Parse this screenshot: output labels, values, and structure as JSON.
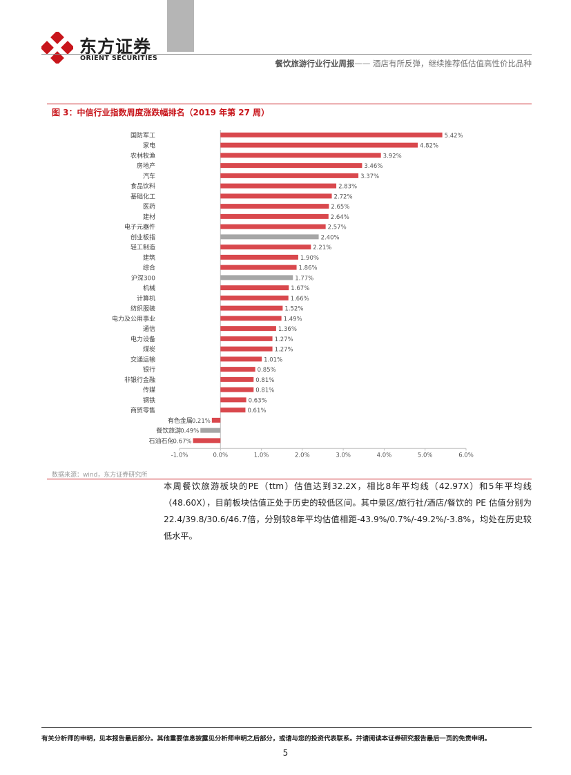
{
  "header": {
    "company_cn": "东方证券",
    "company_en": "ORIENT SECURITIES",
    "report_title": "餐饮旅游行业行业周报",
    "report_subtitle": "—— 酒店有所反弹，继续推荐低估值高性价比品种"
  },
  "figure": {
    "caption": "图 3：中信行业指数周度涨跌幅排名（2019 年第 27 周）",
    "source": "数据来源：wind，东方证券研究所"
  },
  "chart_data": {
    "type": "bar",
    "orientation": "horizontal",
    "title": "中信行业指数周度涨跌幅排名（2019 年第 27 周）",
    "categories": [
      "国防军工",
      "家电",
      "农林牧渔",
      "房地产",
      "汽车",
      "食品饮料",
      "基础化工",
      "医药",
      "建材",
      "电子元器件",
      "创业板指",
      "轻工制造",
      "建筑",
      "综合",
      "沪深300",
      "机械",
      "计算机",
      "纺织服装",
      "电力及公用事业",
      "通信",
      "电力设备",
      "煤炭",
      "交通运输",
      "银行",
      "非银行金融",
      "传媒",
      "钢铁",
      "商贸零售",
      "有色金属",
      "餐饮旅游",
      "石油石化"
    ],
    "values": [
      5.42,
      4.82,
      3.92,
      3.46,
      3.37,
      2.83,
      2.72,
      2.65,
      2.64,
      2.57,
      2.4,
      2.21,
      1.9,
      1.86,
      1.77,
      1.67,
      1.66,
      1.52,
      1.49,
      1.36,
      1.27,
      1.27,
      1.01,
      0.85,
      0.81,
      0.81,
      0.63,
      0.61,
      -0.21,
      -0.49,
      -0.67
    ],
    "value_labels": [
      "5.42%",
      "4.82%",
      "3.92%",
      "3.46%",
      "3.37%",
      "2.83%",
      "2.72%",
      "2.65%",
      "2.64%",
      "2.57%",
      "2.40%",
      "2.21%",
      "1.90%",
      "1.86%",
      "1.77%",
      "1.67%",
      "1.66%",
      "1.52%",
      "1.49%",
      "1.36%",
      "1.27%",
      "1.27%",
      "1.01%",
      "0.85%",
      "0.81%",
      "0.81%",
      "0.63%",
      "0.61%",
      "-0.21%",
      "-0.49%",
      "-0.67%"
    ],
    "highlight": [
      "创业板指",
      "沪深300",
      "餐饮旅游"
    ],
    "xlim": [
      -1.0,
      6.0
    ],
    "xticks": [
      -1.0,
      0,
      1.0,
      2.0,
      3.0,
      4.0,
      5.0,
      6.0
    ],
    "xtick_labels": [
      "-1.0%",
      "0.0%",
      "1.0%",
      "2.0%",
      "3.0%",
      "4.0%",
      "5.0%",
      "6.0%"
    ],
    "bar_color": "#d9484d",
    "highlight_color": "#a6a6a6"
  },
  "body": {
    "paragraph": "本周餐饮旅游板块的PE（ttm）估值达到32.2X，相比8年平均线（42.97X）和5年平均线（48.60X），目前板块估值正处于历史的较低区间。其中景区/旅行社/酒店/餐饮的 PE 估值分别为22.4/39.8/30.6/46.7倍，分别较8年平均估值相距-43.9%/0.7%/-49.2%/-3.8%，均处在历史较低水平。"
  },
  "footer": {
    "disclaimer": "有关分析师的申明，见本报告最后部分。其他重要信息披露见分析师申明之后部分，或请与您的投资代表联系。并请阅读本证券研究报告最后一页的免责申明。",
    "page_number": "5"
  }
}
